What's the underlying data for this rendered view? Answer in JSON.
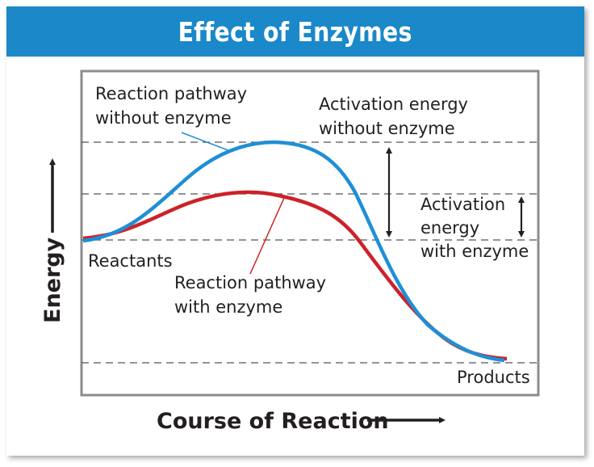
{
  "title": "Effect of Enzymes",
  "colors": {
    "title_bg": "#1a88c9",
    "curve_without_enzyme": "#1f8fd6",
    "curve_with_enzyme": "#cc2229",
    "plot_border": "#8c8c8c",
    "dashed_lines": "#555555",
    "text": "#231f20"
  },
  "axes": {
    "y_label": "Energy",
    "x_label": "Course of Reaction"
  },
  "labels": {
    "pathway_without": [
      "Reaction pathway",
      "without enzyme"
    ],
    "activation_without": [
      "Activation energy",
      "without enzyme"
    ],
    "activation_with": [
      "Activation",
      "energy",
      "with enzyme"
    ],
    "reactants": "Reactants",
    "pathway_with": [
      "Reaction pathway",
      "with enzyme"
    ],
    "products": "Products"
  }
}
